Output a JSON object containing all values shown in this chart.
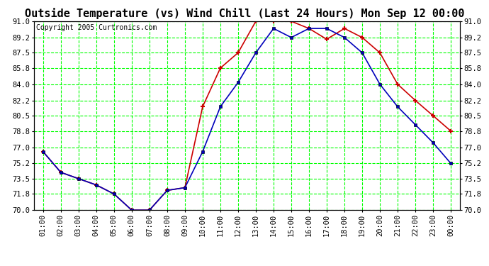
{
  "title": "Outside Temperature (vs) Wind Chill (Last 24 Hours) Mon Sep 12 00:00",
  "copyright": "Copyright 2005 Curtronics.com",
  "x_labels": [
    "01:00",
    "02:00",
    "03:00",
    "04:00",
    "05:00",
    "06:00",
    "07:00",
    "08:00",
    "09:00",
    "10:00",
    "11:00",
    "12:00",
    "13:00",
    "14:00",
    "15:00",
    "16:00",
    "17:00",
    "18:00",
    "19:00",
    "20:00",
    "21:00",
    "22:00",
    "23:00",
    "00:00"
  ],
  "temp_blue": [
    76.5,
    74.2,
    73.5,
    72.8,
    71.8,
    70.0,
    70.0,
    72.2,
    72.5,
    76.5,
    81.5,
    84.2,
    87.5,
    90.2,
    89.2,
    90.2,
    90.2,
    89.2,
    87.5,
    84.0,
    81.5,
    79.5,
    77.5,
    75.2
  ],
  "temp_red": [
    76.5,
    74.2,
    73.5,
    72.8,
    71.8,
    70.0,
    70.0,
    72.2,
    72.5,
    81.5,
    85.8,
    87.5,
    91.0,
    91.0,
    91.0,
    90.2,
    89.0,
    90.2,
    89.2,
    87.5,
    84.0,
    82.2,
    80.5,
    78.8
  ],
  "ylim": [
    70.0,
    91.0
  ],
  "yticks": [
    70.0,
    71.8,
    73.5,
    75.2,
    77.0,
    78.8,
    80.5,
    82.2,
    84.0,
    85.8,
    87.5,
    89.2,
    91.0
  ],
  "bg_color": "#ffffff",
  "plot_bg": "#ffffff",
  "grid_color": "#00ff00",
  "grid_linestyle": "--",
  "blue_color": "#0000bb",
  "red_color": "#cc0000",
  "title_fontsize": 11,
  "tick_fontsize": 7.5,
  "copyright_fontsize": 7
}
